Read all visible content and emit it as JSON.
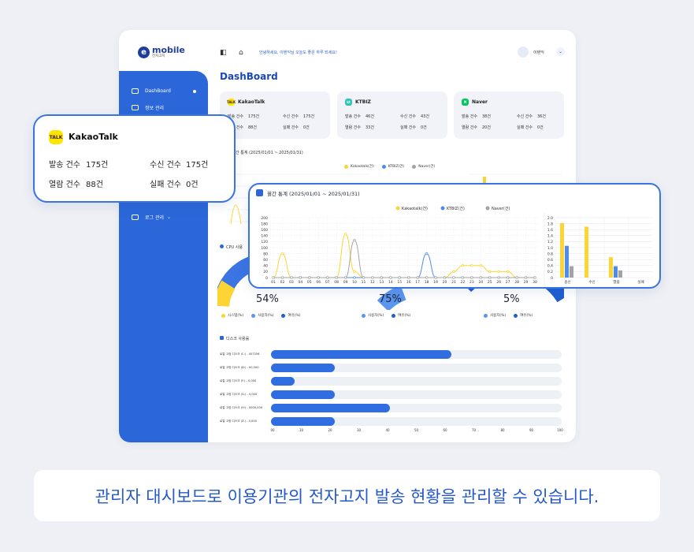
{
  "app": {
    "logo_main": "mobile",
    "logo_sub": "전자고지",
    "greeting": "안녕하세요, 이텐익님 오늘도 좋은 하루 되세요!",
    "user_name": "이텐익",
    "page_title": "DashBoard"
  },
  "sidebar": {
    "items": [
      {
        "label": "DashBoard",
        "icon": "dashboard-icon"
      },
      {
        "label": "정보 관리",
        "icon": "document-icon"
      },
      {
        "label": "로그 관리",
        "icon": "log-icon"
      }
    ]
  },
  "summary_cards": [
    {
      "name": "KakaoTalk",
      "badge": "TALK",
      "color": "#fee500",
      "send_label": "발송 건수",
      "send": "175건",
      "recv_label": "수신 건수",
      "recv": "175건",
      "read_label": "열람 건수",
      "read": "88건",
      "fail_label": "실패 건수",
      "fail": "0건"
    },
    {
      "name": "KTBIZ",
      "badge": "kt",
      "color": "#2ec4b6",
      "send_label": "발송 건수",
      "send": "46건",
      "recv_label": "수신 건수",
      "recv": "43건",
      "read_label": "열람 건수",
      "read": "33건",
      "fail_label": "실패 건수",
      "fail": "0건"
    },
    {
      "name": "Naver",
      "badge": "N",
      "color": "#03c75a",
      "send_label": "발송 건수",
      "send": "38건",
      "recv_label": "수신 건수",
      "recv": "36건",
      "read_label": "열람 건수",
      "read": "20건",
      "fail_label": "실패 건수",
      "fail": "0건"
    }
  ],
  "background_chart": {
    "title": "월간 통계 (2025/01/01 ~ 2025/01/31)",
    "title_partial": "간 통계 (2025/01/01 ~ 2025/01/31)"
  },
  "cpu": {
    "label": "CPU 사용",
    "gauges": [
      {
        "pct": "54%",
        "legend": [
          "시스템(%)",
          "사용자(%)",
          "여유(%)"
        ]
      },
      {
        "pct": "75%",
        "legend": [
          "사용자(%)",
          "여유(%)"
        ]
      },
      {
        "pct": "5%",
        "legend": [
          "사용자(%)",
          "여유(%)"
        ]
      }
    ]
  },
  "disk": {
    "label": "디스크 사용률",
    "rows": [
      {
        "label": "로컬 고정 디스크 (C:) - 457356",
        "value": 62
      },
      {
        "label": "로컬 고정 디스크 (D:) - 00,000",
        "value": 22
      },
      {
        "label": "로컬 고정 디스크 (F:) - 0,000",
        "value": 8
      },
      {
        "label": "로컬 고정 디스크 (G:) - 0,000",
        "value": 22
      },
      {
        "label": "로컬 고정 디스크 (H:) - 0000,000",
        "value": 41
      },
      {
        "label": "로컬 고정 디스크 (Z:) - 0,000",
        "value": 22
      }
    ],
    "ticks": [
      "00",
      "10",
      "20",
      "30",
      "40",
      "50",
      "60",
      "70",
      "80",
      "90",
      "100"
    ]
  },
  "kakao_card": {
    "title": "KakaoTalk",
    "icon_text": "TALK",
    "send_label": "발송 건수",
    "send": "175건",
    "recv_label": "수신 건수",
    "recv": "175건",
    "read_label": "열람 건수",
    "read": "88건",
    "fail_label": "실패 건수",
    "fail": "0건"
  },
  "stats_card": {
    "title": "월간 통계 (2025/01/01 ~ 2025/01/31)"
  },
  "chart_data": [
    {
      "type": "line",
      "title": "월간 통계 (2025/01/01 ~ 2025/01/31)",
      "x": [
        "01",
        "02",
        "03",
        "04",
        "05",
        "06",
        "07",
        "08",
        "09",
        "10",
        "11",
        "12",
        "13",
        "14",
        "15",
        "16",
        "17",
        "18",
        "19",
        "20",
        "21",
        "22",
        "23",
        "24",
        "25",
        "26",
        "27",
        "28",
        "29",
        "30"
      ],
      "ylim": [
        0,
        200
      ],
      "yticks": [
        "0",
        "20",
        "40",
        "60",
        "80",
        "100",
        "120",
        "140",
        "160",
        "180",
        "200"
      ],
      "legend": "top-center",
      "grid": true,
      "series": [
        {
          "name": "Kakaotalk(건)",
          "color": "#fcd535",
          "values": [
            0,
            80,
            0,
            0,
            0,
            0,
            0,
            0,
            145,
            20,
            0,
            0,
            0,
            0,
            0,
            0,
            0,
            0,
            0,
            0,
            20,
            40,
            40,
            40,
            20,
            20,
            20,
            0,
            0,
            0
          ]
        },
        {
          "name": "KTBIZ(건)",
          "color": "#4f8be8",
          "values": [
            0,
            0,
            0,
            0,
            0,
            0,
            0,
            0,
            0,
            0,
            0,
            0,
            0,
            0,
            0,
            0,
            0,
            80,
            0,
            0,
            0,
            0,
            0,
            0,
            0,
            0,
            0,
            0,
            0,
            0
          ]
        },
        {
          "name": "Naver(건)",
          "color": "#a3a3a3",
          "values": [
            0,
            0,
            0,
            0,
            0,
            0,
            0,
            0,
            0,
            125,
            0,
            0,
            0,
            0,
            0,
            0,
            0,
            0,
            0,
            0,
            0,
            0,
            0,
            0,
            0,
            0,
            0,
            0,
            0,
            0
          ]
        }
      ]
    },
    {
      "type": "bar",
      "categories": [
        "송신",
        "수신",
        "열람",
        "실패"
      ],
      "ylim": [
        0,
        2.0
      ],
      "yticks": [
        "0",
        "0.2",
        "0.4",
        "0.6",
        "0.8",
        "1.0",
        "1.2",
        "1.4",
        "1.6",
        "1.8",
        "2.0"
      ],
      "series": [
        {
          "name": "Kakaotalk(건)",
          "color": "#fcd535",
          "values": [
            1.82,
            1.7,
            0.68,
            0
          ]
        },
        {
          "name": "KTBIZ(건)",
          "color": "#4f8be8",
          "values": [
            1.06,
            0,
            0.38,
            0
          ]
        },
        {
          "name": "Naver(건)",
          "color": "#a3a3a3",
          "values": [
            0.38,
            0,
            0.24,
            0
          ]
        }
      ]
    }
  ],
  "caption": "관리자 대시보드로 이용기관의 전자고지 발송 현황을 관리할 수 있습니다."
}
